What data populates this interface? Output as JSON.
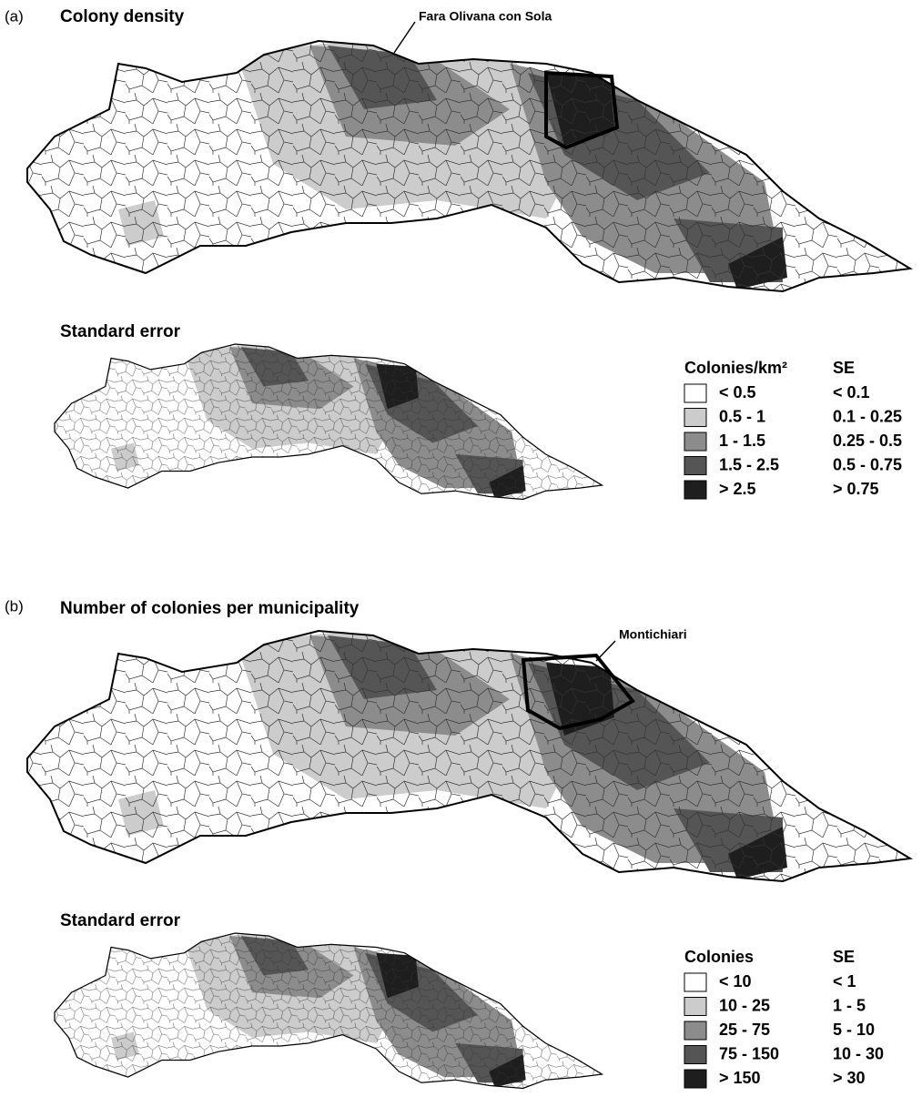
{
  "panels": [
    {
      "label": "(a)",
      "title": "Colony density",
      "annotation": "Fara Olivana con Sola",
      "se_title": "Standard error",
      "legend": {
        "header": "Colonies/km²",
        "se_header": "SE",
        "items": [
          {
            "label": "< 0.5",
            "se": "< 0.1",
            "color": "#ffffff"
          },
          {
            "label": "0.5 - 1",
            "se": "0.1 - 0.25",
            "color": "#cccccc"
          },
          {
            "label": "1 - 1.5",
            "se": "0.25 - 0.5",
            "color": "#8c8c8c"
          },
          {
            "label": "1.5 - 2.5",
            "se": "0.5 - 0.75",
            "color": "#555555"
          },
          {
            "label": "> 2.5",
            "se": "> 0.75",
            "color": "#1e1e1e"
          }
        ]
      }
    },
    {
      "label": "(b)",
      "title": "Number of colonies per municipality",
      "annotation": "Montichiari",
      "se_title": "Standard error",
      "legend": {
        "header": "Colonies",
        "se_header": "SE",
        "items": [
          {
            "label": "< 10",
            "se": "< 1",
            "color": "#ffffff"
          },
          {
            "label": "10 - 25",
            "se": "1 - 5",
            "color": "#cccccc"
          },
          {
            "label": "25 - 75",
            "se": "5 - 10",
            "color": "#8c8c8c"
          },
          {
            "label": "75 - 150",
            "se": "10 - 30",
            "color": "#555555"
          },
          {
            "label": "> 150",
            "se": "> 30",
            "color": "#1e1e1e"
          }
        ]
      }
    }
  ]
}
